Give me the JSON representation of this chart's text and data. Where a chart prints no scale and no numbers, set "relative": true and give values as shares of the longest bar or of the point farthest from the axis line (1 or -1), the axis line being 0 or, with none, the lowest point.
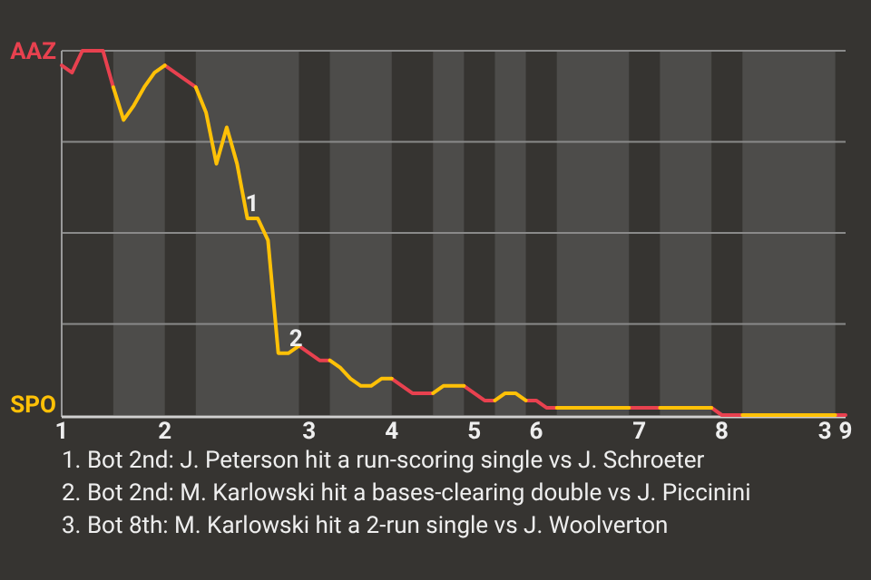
{
  "chart_data": {
    "type": "line",
    "relative": true,
    "categories": [
      "1",
      null,
      null,
      null,
      null,
      null,
      null,
      null,
      null,
      null,
      "2",
      null,
      null,
      null,
      null,
      null,
      null,
      null,
      null,
      null,
      null,
      null,
      null,
      null,
      "3",
      null,
      null,
      null,
      null,
      null,
      null,
      null,
      "4",
      null,
      null,
      null,
      null,
      null,
      null,
      null,
      "5",
      null,
      null,
      null,
      null,
      null,
      "6",
      null,
      null,
      null,
      null,
      null,
      null,
      null,
      null,
      null,
      "7",
      null,
      null,
      null,
      null,
      null,
      null,
      null,
      "8",
      null,
      null,
      null,
      null,
      null,
      null,
      null,
      null,
      null,
      "3",
      null,
      "9"
    ],
    "grid": "y",
    "marker": "none",
    "line_style": "solid",
    "series": [
      {
        "color": "#e8414f",
        "values": [
          0.96,
          0.94,
          1,
          1,
          1,
          0.9,
          null,
          null,
          null,
          null,
          0.96,
          0.94,
          0.92,
          0.9,
          null,
          null,
          null,
          null,
          null,
          null,
          null,
          null,
          null,
          0.19,
          0.17,
          0.15,
          0.15,
          null,
          null,
          null,
          null,
          null,
          0.1,
          0.08,
          0.06,
          0.06,
          0.06,
          null,
          null,
          0.08,
          0.06,
          0.04,
          0.04,
          null,
          null,
          0.04,
          0.04,
          0.02,
          0.02,
          null,
          null,
          null,
          null,
          null,
          null,
          0.02,
          0.02,
          0.02,
          0.02,
          null,
          null,
          null,
          null,
          0.02,
          0,
          0,
          0,
          null,
          null,
          null,
          null,
          null,
          null,
          null,
          null,
          0,
          0
        ]
      },
      {
        "color": "#ffc107",
        "values": [
          null,
          null,
          null,
          null,
          null,
          0.9,
          0.81,
          0.85,
          0.9,
          0.94,
          0.96,
          null,
          null,
          0.9,
          0.83,
          0.69,
          0.79,
          0.69,
          0.54,
          0.54,
          0.48,
          0.17,
          0.17,
          0.19,
          null,
          null,
          0.15,
          0.13,
          0.1,
          0.08,
          0.08,
          0.1,
          0.1,
          null,
          null,
          null,
          0.06,
          0.08,
          0.08,
          0.08,
          null,
          null,
          0.04,
          0.06,
          0.06,
          0.04,
          null,
          null,
          0.02,
          0.02,
          0.02,
          0.02,
          0.02,
          0.02,
          0.02,
          0.02,
          null,
          null,
          0.02,
          0.02,
          0.02,
          0.02,
          0.02,
          0.02,
          null,
          null,
          0,
          0,
          0,
          0,
          0,
          0,
          0,
          0,
          0,
          0,
          null
        ]
      }
    ],
    "annotations": [
      "AAZ",
      "SPO",
      "1",
      "2",
      "1. Bot 2nd: J. Peterson hit a run-scoring single vs J. Schroeter",
      "2. Bot 2nd: M. Karlowski hit a bases-clearing double vs J. Piccinini",
      "3. Bot 8th: M. Karlowski hit a 2-run single vs J. Woolverton"
    ]
  }
}
